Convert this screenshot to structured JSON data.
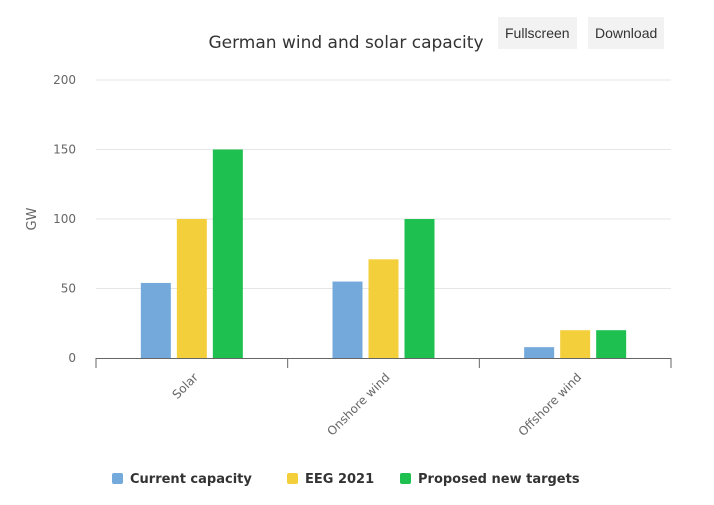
{
  "buttons": {
    "fullscreen": "Fullscreen",
    "download": "Download"
  },
  "chart_data": {
    "type": "bar",
    "title": "German wind and solar capacity",
    "xlabel": "",
    "ylabel": "GW",
    "ylim": [
      0,
      200
    ],
    "yticks": [
      0,
      50,
      100,
      150,
      200
    ],
    "grid": true,
    "legend_position": "bottom",
    "categories": [
      "Solar",
      "Onshore wind",
      "Offshore wind"
    ],
    "series": [
      {
        "name": "Current capacity",
        "color": "#74a9dc",
        "values": [
          54,
          55,
          7.8
        ]
      },
      {
        "name": "EEG 2021",
        "color": "#f4cf3c",
        "values": [
          100,
          71,
          20
        ]
      },
      {
        "name": "Proposed new targets",
        "color": "#1ec04f",
        "values": [
          150,
          100,
          20
        ]
      }
    ]
  }
}
